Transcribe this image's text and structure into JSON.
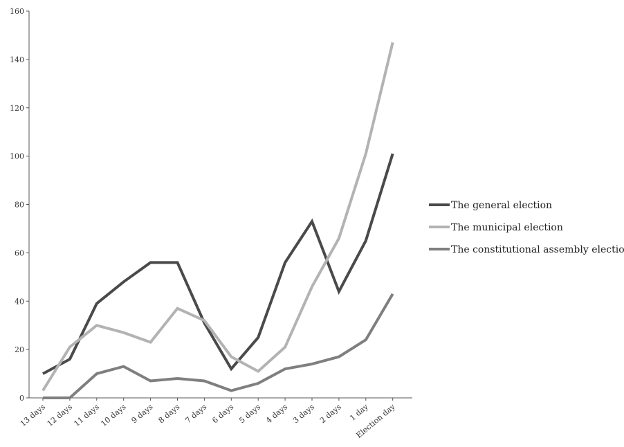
{
  "chart_data": {
    "type": "line",
    "title": "",
    "xlabel": "",
    "ylabel": "",
    "categories": [
      "13 days",
      "12 days",
      "11 days",
      "10 days",
      "9 days",
      "8 days",
      "7 days",
      "6 days",
      "5 days",
      "4 days",
      "3 days",
      "2 days",
      "1 day",
      "Election day"
    ],
    "ylim": [
      0,
      160
    ],
    "yticks": [
      0,
      20,
      40,
      60,
      80,
      100,
      120,
      140,
      160
    ],
    "grid": false,
    "legend_position": "right",
    "series": [
      {
        "name": "The general election",
        "color": "#4a4a4a",
        "values": [
          10,
          16,
          39,
          48,
          56,
          56,
          31,
          12,
          25,
          56,
          73,
          44,
          65,
          101
        ]
      },
      {
        "name": "The municipal election",
        "color": "#b3b3b3",
        "values": [
          3,
          21,
          30,
          27,
          23,
          37,
          32,
          17,
          11,
          21,
          46,
          66,
          101,
          147
        ]
      },
      {
        "name": "The constitutional assembly election",
        "color": "#7f7f7f",
        "values": [
          0,
          0,
          10,
          13,
          7,
          8,
          7,
          3,
          6,
          12,
          14,
          17,
          24,
          43
        ]
      }
    ]
  }
}
